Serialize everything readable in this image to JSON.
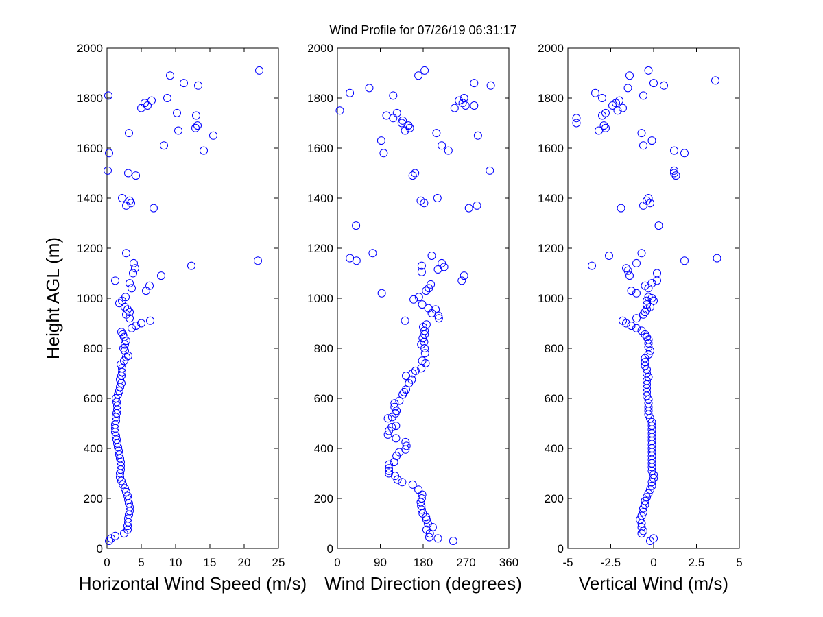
{
  "figure_title": "Wind Profile for  07/26/19 06:31:17",
  "marker_color": "#0000ff",
  "chart_data": [
    {
      "type": "scatter",
      "xlabel": "Horizontal Wind Speed (m/s)",
      "ylabel": "Height AGL (m)",
      "xlim": [
        0,
        25
      ],
      "ylim": [
        0,
        2000
      ],
      "xticks": [
        "0",
        "5",
        "10",
        "15",
        "20",
        "25"
      ],
      "yticks": [
        "0",
        "200",
        "400",
        "600",
        "800",
        "1000",
        "1200",
        "1400",
        "1600",
        "1800",
        "2000"
      ],
      "grid": false,
      "points": [
        [
          0.3,
          30
        ],
        [
          0.6,
          40
        ],
        [
          1.2,
          50
        ],
        [
          2.5,
          60
        ],
        [
          3.0,
          75
        ],
        [
          3.0,
          90
        ],
        [
          3.1,
          105
        ],
        [
          3.1,
          120
        ],
        [
          3.2,
          135
        ],
        [
          3.3,
          150
        ],
        [
          3.3,
          165
        ],
        [
          3.2,
          180
        ],
        [
          3.1,
          195
        ],
        [
          3.0,
          210
        ],
        [
          2.8,
          225
        ],
        [
          2.6,
          240
        ],
        [
          2.3,
          255
        ],
        [
          2.1,
          270
        ],
        [
          1.9,
          285
        ],
        [
          1.9,
          300
        ],
        [
          2.0,
          315
        ],
        [
          2.0,
          330
        ],
        [
          2.0,
          345
        ],
        [
          1.9,
          360
        ],
        [
          1.8,
          375
        ],
        [
          1.7,
          390
        ],
        [
          1.6,
          405
        ],
        [
          1.5,
          420
        ],
        [
          1.4,
          435
        ],
        [
          1.3,
          450
        ],
        [
          1.2,
          465
        ],
        [
          1.2,
          480
        ],
        [
          1.2,
          495
        ],
        [
          1.3,
          510
        ],
        [
          1.3,
          525
        ],
        [
          1.4,
          540
        ],
        [
          1.5,
          555
        ],
        [
          1.5,
          570
        ],
        [
          1.4,
          585
        ],
        [
          1.3,
          600
        ],
        [
          1.6,
          615
        ],
        [
          1.8,
          630
        ],
        [
          1.9,
          645
        ],
        [
          2.1,
          660
        ],
        [
          1.9,
          675
        ],
        [
          2.1,
          690
        ],
        [
          2.2,
          705
        ],
        [
          2.2,
          720
        ],
        [
          2.0,
          735
        ],
        [
          2.5,
          750
        ],
        [
          2.8,
          765
        ],
        [
          3.1,
          770
        ],
        [
          2.6,
          790
        ],
        [
          2.4,
          800
        ],
        [
          2.6,
          815
        ],
        [
          2.8,
          830
        ],
        [
          2.5,
          845
        ],
        [
          2.3,
          855
        ],
        [
          2.1,
          865
        ],
        [
          3.6,
          880
        ],
        [
          4.2,
          890
        ],
        [
          5.0,
          900
        ],
        [
          6.3,
          910
        ],
        [
          3.3,
          920
        ],
        [
          2.8,
          935
        ],
        [
          3.3,
          945
        ],
        [
          3.0,
          955
        ],
        [
          2.6,
          965
        ],
        [
          1.8,
          980
        ],
        [
          2.2,
          990
        ],
        [
          2.7,
          1005
        ],
        [
          5.7,
          1030
        ],
        [
          3.6,
          1040
        ],
        [
          3.3,
          1060
        ],
        [
          6.2,
          1050
        ],
        [
          1.2,
          1070
        ],
        [
          7.9,
          1090
        ],
        [
          3.8,
          1100
        ],
        [
          4.1,
          1120
        ],
        [
          3.9,
          1140
        ],
        [
          12.3,
          1130
        ],
        [
          22.0,
          1150
        ],
        [
          2.8,
          1180
        ],
        [
          6.8,
          1360
        ],
        [
          2.8,
          1370
        ],
        [
          3.5,
          1380
        ],
        [
          3.3,
          1390
        ],
        [
          2.2,
          1400
        ],
        [
          4.2,
          1490
        ],
        [
          3.1,
          1500
        ],
        [
          0.1,
          1510
        ],
        [
          0.3,
          1580
        ],
        [
          14.1,
          1590
        ],
        [
          8.3,
          1610
        ],
        [
          15.5,
          1650
        ],
        [
          3.2,
          1660
        ],
        [
          10.4,
          1670
        ],
        [
          12.9,
          1680
        ],
        [
          13.2,
          1690
        ],
        [
          13.0,
          1730
        ],
        [
          10.2,
          1740
        ],
        [
          5.0,
          1760
        ],
        [
          5.9,
          1770
        ],
        [
          5.5,
          1780
        ],
        [
          6.5,
          1790
        ],
        [
          8.8,
          1800
        ],
        [
          0.2,
          1810
        ],
        [
          13.3,
          1850
        ],
        [
          11.2,
          1860
        ],
        [
          9.2,
          1890
        ],
        [
          22.2,
          1910
        ]
      ]
    },
    {
      "type": "scatter",
      "xlabel": "Wind Direction (degrees)",
      "ylabel": "",
      "xlim": [
        0,
        360
      ],
      "ylim": [
        0,
        2000
      ],
      "xticks": [
        "0",
        "90",
        "180",
        "270",
        "360"
      ],
      "yticks": [
        "0",
        "200",
        "400",
        "600",
        "800",
        "1000",
        "1200",
        "1400",
        "1600",
        "1800",
        "2000"
      ],
      "grid": false,
      "points": [
        [
          243,
          30
        ],
        [
          193,
          45
        ],
        [
          211,
          40
        ],
        [
          194,
          60
        ],
        [
          200,
          85
        ],
        [
          187,
          75
        ],
        [
          190,
          100
        ],
        [
          187,
          115
        ],
        [
          186,
          125
        ],
        [
          179,
          140
        ],
        [
          177,
          155
        ],
        [
          176,
          170
        ],
        [
          175,
          185
        ],
        [
          177,
          200
        ],
        [
          178,
          215
        ],
        [
          170,
          235
        ],
        [
          158,
          255
        ],
        [
          136,
          265
        ],
        [
          126,
          275
        ],
        [
          121,
          290
        ],
        [
          108,
          300
        ],
        [
          108,
          310
        ],
        [
          108,
          320
        ],
        [
          108,
          335
        ],
        [
          119,
          345
        ],
        [
          124,
          370
        ],
        [
          130,
          385
        ],
        [
          143,
          395
        ],
        [
          145,
          410
        ],
        [
          143,
          425
        ],
        [
          123,
          440
        ],
        [
          106,
          455
        ],
        [
          108,
          470
        ],
        [
          114,
          485
        ],
        [
          123,
          490
        ],
        [
          106,
          520
        ],
        [
          115,
          525
        ],
        [
          122,
          540
        ],
        [
          124,
          550
        ],
        [
          120,
          565
        ],
        [
          120,
          580
        ],
        [
          130,
          590
        ],
        [
          137,
          615
        ],
        [
          140,
          625
        ],
        [
          144,
          635
        ],
        [
          150,
          660
        ],
        [
          156,
          675
        ],
        [
          144,
          690
        ],
        [
          158,
          700
        ],
        [
          164,
          710
        ],
        [
          176,
          720
        ],
        [
          185,
          740
        ],
        [
          178,
          750
        ],
        [
          184,
          780
        ],
        [
          183,
          800
        ],
        [
          176,
          815
        ],
        [
          182,
          825
        ],
        [
          179,
          840
        ],
        [
          183,
          855
        ],
        [
          183,
          870
        ],
        [
          180,
          885
        ],
        [
          187,
          895
        ],
        [
          142,
          910
        ],
        [
          213,
          920
        ],
        [
          212,
          930
        ],
        [
          198,
          940
        ],
        [
          206,
          955
        ],
        [
          191,
          960
        ],
        [
          178,
          975
        ],
        [
          160,
          995
        ],
        [
          171,
          1005
        ],
        [
          186,
          1030
        ],
        [
          192,
          1040
        ],
        [
          196,
          1055
        ],
        [
          93,
          1020
        ],
        [
          261,
          1070
        ],
        [
          266,
          1090
        ],
        [
          177,
          1105
        ],
        [
          211,
          1115
        ],
        [
          224,
          1125
        ],
        [
          219,
          1140
        ],
        [
          198,
          1170
        ],
        [
          177,
          1130
        ],
        [
          40,
          1150
        ],
        [
          26,
          1160
        ],
        [
          74,
          1180
        ],
        [
          39,
          1290
        ],
        [
          276,
          1360
        ],
        [
          293,
          1370
        ],
        [
          182,
          1380
        ],
        [
          175,
          1390
        ],
        [
          210,
          1400
        ],
        [
          158,
          1490
        ],
        [
          163,
          1500
        ],
        [
          320,
          1510
        ],
        [
          97,
          1580
        ],
        [
          233,
          1590
        ],
        [
          219,
          1610
        ],
        [
          92,
          1630
        ],
        [
          295,
          1650
        ],
        [
          208,
          1660
        ],
        [
          142,
          1670
        ],
        [
          149,
          1690
        ],
        [
          152,
          1680
        ],
        [
          135,
          1700
        ],
        [
          137,
          1710
        ],
        [
          103,
          1730
        ],
        [
          117,
          1720
        ],
        [
          125,
          1740
        ],
        [
          246,
          1760
        ],
        [
          269,
          1770
        ],
        [
          287,
          1770
        ],
        [
          263,
          1780
        ],
        [
          266,
          1800
        ],
        [
          255,
          1790
        ],
        [
          5,
          1750
        ],
        [
          117,
          1810
        ],
        [
          26,
          1820
        ],
        [
          67,
          1840
        ],
        [
          322,
          1850
        ],
        [
          287,
          1860
        ],
        [
          183,
          1910
        ],
        [
          170,
          1890
        ]
      ]
    },
    {
      "type": "scatter",
      "xlabel": "Vertical Wind (m/s)",
      "ylabel": "",
      "xlim": [
        -5,
        5
      ],
      "ylim": [
        0,
        2000
      ],
      "xticks": [
        "-5",
        "-2.5",
        "0",
        "2.5",
        "5"
      ],
      "yticks": [
        "0",
        "200",
        "400",
        "600",
        "800",
        "1000",
        "1200",
        "1400",
        "1600",
        "1800",
        "2000"
      ],
      "grid": false,
      "points": [
        [
          -0.2,
          30
        ],
        [
          0.0,
          40
        ],
        [
          -0.7,
          60
        ],
        [
          -0.6,
          70
        ],
        [
          -0.7,
          85
        ],
        [
          -0.7,
          100
        ],
        [
          -0.8,
          115
        ],
        [
          -0.7,
          130
        ],
        [
          -0.6,
          145
        ],
        [
          -0.6,
          160
        ],
        [
          -0.5,
          175
        ],
        [
          -0.5,
          190
        ],
        [
          -0.4,
          205
        ],
        [
          -0.3,
          220
        ],
        [
          -0.2,
          235
        ],
        [
          -0.1,
          250
        ],
        [
          -0.1,
          265
        ],
        [
          0.0,
          280
        ],
        [
          0.0,
          295
        ],
        [
          -0.1,
          310
        ],
        [
          -0.1,
          325
        ],
        [
          -0.1,
          340
        ],
        [
          -0.1,
          355
        ],
        [
          -0.1,
          370
        ],
        [
          -0.1,
          385
        ],
        [
          -0.1,
          400
        ],
        [
          -0.1,
          415
        ],
        [
          -0.1,
          430
        ],
        [
          -0.1,
          445
        ],
        [
          -0.1,
          460
        ],
        [
          -0.1,
          475
        ],
        [
          -0.1,
          490
        ],
        [
          -0.1,
          505
        ],
        [
          -0.2,
          520
        ],
        [
          -0.3,
          535
        ],
        [
          -0.3,
          550
        ],
        [
          -0.3,
          565
        ],
        [
          -0.3,
          580
        ],
        [
          -0.3,
          595
        ],
        [
          -0.4,
          610
        ],
        [
          -0.4,
          625
        ],
        [
          -0.4,
          640
        ],
        [
          -0.4,
          655
        ],
        [
          -0.4,
          670
        ],
        [
          -0.3,
          685
        ],
        [
          -0.4,
          700
        ],
        [
          -0.4,
          715
        ],
        [
          -0.5,
          730
        ],
        [
          -0.5,
          745
        ],
        [
          -0.5,
          760
        ],
        [
          -0.3,
          775
        ],
        [
          -0.2,
          790
        ],
        [
          -0.3,
          805
        ],
        [
          -0.3,
          820
        ],
        [
          -0.3,
          835
        ],
        [
          -0.4,
          845
        ],
        [
          -0.5,
          855
        ],
        [
          -0.7,
          870
        ],
        [
          -1.0,
          880
        ],
        [
          -1.3,
          890
        ],
        [
          -1.6,
          900
        ],
        [
          -1.8,
          910
        ],
        [
          -1.0,
          920
        ],
        [
          -0.6,
          935
        ],
        [
          -0.5,
          945
        ],
        [
          -0.4,
          955
        ],
        [
          -0.2,
          965
        ],
        [
          -0.4,
          975
        ],
        [
          -0.4,
          990
        ],
        [
          -0.3,
          1005
        ],
        [
          -0.1,
          1000
        ],
        [
          0.0,
          990
        ],
        [
          -1.0,
          1020
        ],
        [
          -1.3,
          1030
        ],
        [
          -0.3,
          1040
        ],
        [
          -0.5,
          1050
        ],
        [
          -0.1,
          1060
        ],
        [
          0.2,
          1070
        ],
        [
          0.2,
          1100
        ],
        [
          -1.4,
          1090
        ],
        [
          -1.5,
          1110
        ],
        [
          -1.6,
          1120
        ],
        [
          -1.0,
          1140
        ],
        [
          -3.6,
          1130
        ],
        [
          1.8,
          1150
        ],
        [
          3.7,
          1160
        ],
        [
          -2.6,
          1170
        ],
        [
          -0.7,
          1180
        ],
        [
          0.3,
          1290
        ],
        [
          -1.9,
          1360
        ],
        [
          -0.6,
          1370
        ],
        [
          -0.2,
          1380
        ],
        [
          -0.4,
          1390
        ],
        [
          -0.3,
          1400
        ],
        [
          1.3,
          1490
        ],
        [
          1.2,
          1500
        ],
        [
          1.2,
          1510
        ],
        [
          1.8,
          1580
        ],
        [
          1.2,
          1590
        ],
        [
          -0.6,
          1610
        ],
        [
          -0.1,
          1630
        ],
        [
          -0.7,
          1660
        ],
        [
          -3.2,
          1670
        ],
        [
          -2.8,
          1680
        ],
        [
          -2.9,
          1690
        ],
        [
          -4.5,
          1700
        ],
        [
          -4.5,
          1720
        ],
        [
          -3.0,
          1730
        ],
        [
          -2.8,
          1740
        ],
        [
          -2.1,
          1750
        ],
        [
          -1.8,
          1760
        ],
        [
          -2.4,
          1770
        ],
        [
          -2.2,
          1780
        ],
        [
          -2.0,
          1790
        ],
        [
          -3.0,
          1800
        ],
        [
          -0.6,
          1810
        ],
        [
          -3.4,
          1820
        ],
        [
          -1.5,
          1840
        ],
        [
          0.6,
          1850
        ],
        [
          0.0,
          1860
        ],
        [
          3.6,
          1870
        ],
        [
          -1.4,
          1890
        ],
        [
          -0.3,
          1910
        ]
      ]
    }
  ]
}
